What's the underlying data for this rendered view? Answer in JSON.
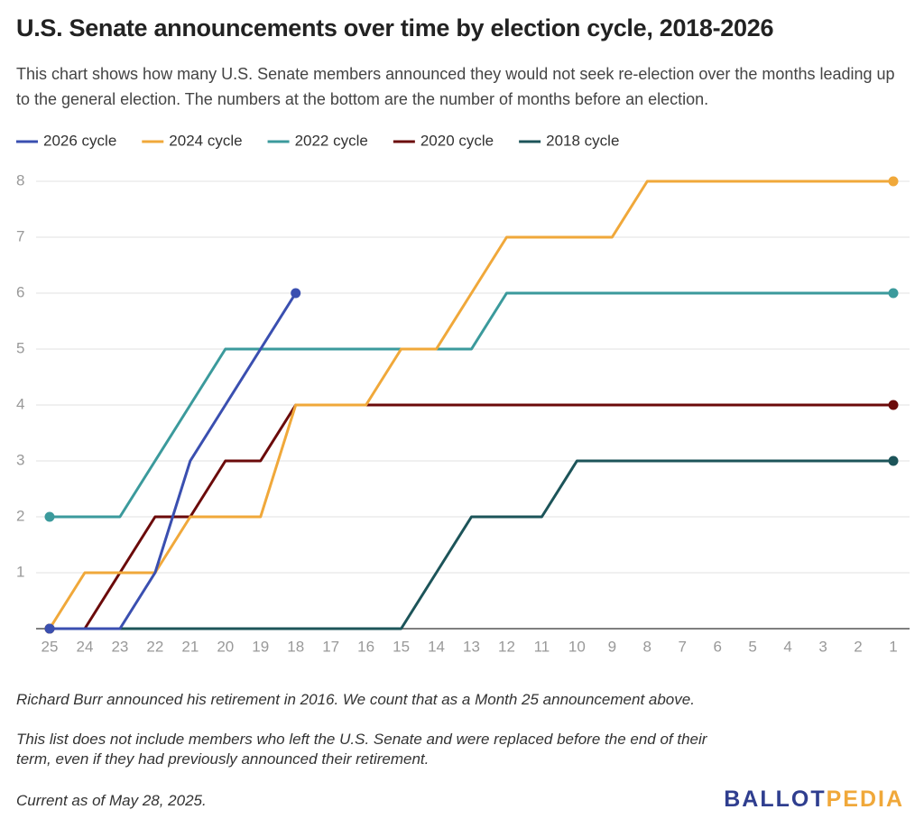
{
  "chart_data": {
    "type": "line",
    "title": "U.S. Senate announcements over time by election cycle, 2018-2026",
    "subtitle": "This chart shows how many U.S. Senate members announced they would not seek re-election over the months leading up to the general election. The numbers at the bottom are the number of months before an election.",
    "notes": [
      "Richard Burr announced his retirement in 2016. We count that as a Month 25 announcement above.",
      "This list does not include members who left the U.S. Senate and were replaced before the end of their term, even if they had previously announced their retirement."
    ],
    "footer": "Current as of May 28, 2025.",
    "logo": [
      "BALLOT",
      "PEDIA"
    ],
    "categories": [
      "25",
      "24",
      "23",
      "22",
      "21",
      "20",
      "19",
      "18",
      "17",
      "16",
      "15",
      "14",
      "13",
      "12",
      "11",
      "10",
      "9",
      "8",
      "7",
      "6",
      "5",
      "4",
      "3",
      "2",
      "1"
    ],
    "series": [
      {
        "name": "2026 cycle",
        "color": "#3a4fb0",
        "values": [
          0,
          0,
          0,
          1,
          3,
          4,
          5,
          6,
          null,
          null,
          null,
          null,
          null,
          null,
          null,
          null,
          null,
          null,
          null,
          null,
          null,
          null,
          null,
          null,
          null
        ]
      },
      {
        "name": "2024 cycle",
        "color": "#f0a83a",
        "values": [
          0,
          1,
          1,
          1,
          2,
          2,
          2,
          4,
          4,
          4,
          5,
          5,
          6,
          7,
          7,
          7,
          7,
          8,
          8,
          8,
          8,
          8,
          8,
          8,
          8
        ]
      },
      {
        "name": "2022 cycle",
        "color": "#3b9a9c",
        "values": [
          2,
          2,
          2,
          3,
          4,
          5,
          5,
          5,
          5,
          5,
          5,
          5,
          5,
          6,
          6,
          6,
          6,
          6,
          6,
          6,
          6,
          6,
          6,
          6,
          6
        ]
      },
      {
        "name": "2020 cycle",
        "color": "#6b0a0a",
        "values": [
          0,
          0,
          1,
          2,
          2,
          3,
          3,
          4,
          4,
          4,
          4,
          4,
          4,
          4,
          4,
          4,
          4,
          4,
          4,
          4,
          4,
          4,
          4,
          4,
          4
        ]
      },
      {
        "name": "2018 cycle",
        "color": "#1c5459",
        "values": [
          0,
          0,
          0,
          0,
          0,
          0,
          0,
          0,
          0,
          0,
          0,
          1,
          2,
          2,
          2,
          3,
          3,
          3,
          3,
          3,
          3,
          3,
          3,
          3,
          3
        ]
      }
    ],
    "ylim": [
      0,
      8
    ],
    "yticks": [
      1,
      2,
      3,
      4,
      5,
      6,
      7,
      8
    ],
    "grid": true
  }
}
